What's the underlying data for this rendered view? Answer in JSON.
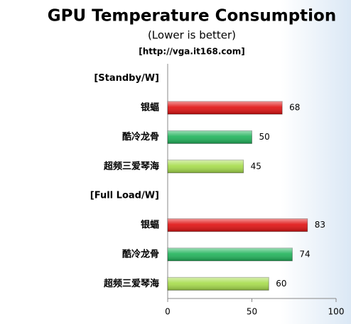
{
  "chart_data": {
    "type": "bar",
    "orientation": "horizontal",
    "title": "GPU Temperature Consumption",
    "subtitle": "(Lower is better)",
    "source": "[http://vga.it168.com]",
    "categories": [
      "[Standby/W]",
      "银蝠",
      "酷冷龙骨",
      "超频三爱琴海",
      "[Full Load/W]",
      "银蝠",
      "酷冷龙骨",
      "超频三爱琴海"
    ],
    "values": [
      null,
      68,
      50,
      45,
      null,
      83,
      74,
      60
    ],
    "colors": [
      null,
      "#e01010",
      "#1fb35a",
      "#a6dc4a",
      null,
      "#e01010",
      "#1fb35a",
      "#a6dc4a"
    ],
    "xlim": [
      0,
      100
    ],
    "xticks": [
      0,
      50,
      100
    ]
  }
}
